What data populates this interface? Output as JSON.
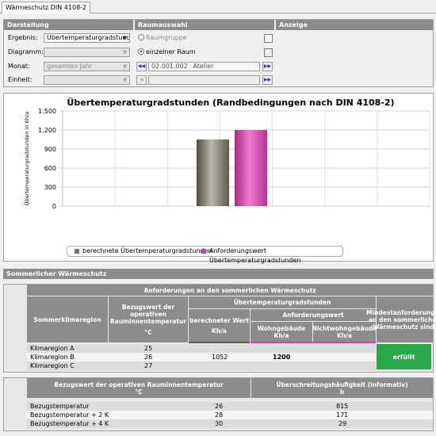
{
  "tab": {
    "title": "Wärmeschutz DIN 4108-2"
  },
  "panels": {
    "darstellung": "Darstellung",
    "raumauswahl": "Raumauswahl",
    "anzeige": "Anzeige"
  },
  "form": {
    "ergebnis_label": "Ergebnis:",
    "ergebnis_value": "Übertemperaturgradstunden",
    "diagramm_label": "Diagramm:",
    "diagramm_value": "",
    "monat_label": "Monat:",
    "monat_value": "gesamtes Jahr",
    "einheit_label": "Einheit:",
    "einheit_value": ""
  },
  "raum": {
    "raumgruppe_label": "Raumgruppe",
    "einzelner_raum_label": "einzelner Raum",
    "selected": "einzelner Raum",
    "raum_nummer": "02.001.002",
    "raum_name": "Atelier"
  },
  "chart_data": {
    "type": "bar",
    "title": "Übertemperaturgradstunden (Randbedingungen nach DIN 4108-2)",
    "ylabel": "Übertemperaturgradstunden in Kh/a",
    "ylim": [
      0,
      1500
    ],
    "yticks": [
      0,
      300,
      600,
      900,
      1200,
      1500
    ],
    "ytick_labels": [
      "0",
      "300",
      "600",
      "900",
      "1.200",
      "1.500"
    ],
    "grid": true,
    "legend_position": "bottom",
    "series": [
      {
        "name": "berechnete Übertemperaturgradstunden",
        "value": 1052,
        "color": "#7a766a"
      },
      {
        "name": "Anforderungswert Übertemperaturgradstunden",
        "value": 1200,
        "color": "#d33fa6"
      }
    ]
  },
  "section": {
    "title": "Sommerlicher Wärmeschutz"
  },
  "table1": {
    "title": "Anforderungen an den sommerlichen Wärmeschutz",
    "col_region": "Sommerklimaregion",
    "col_bezug": "Bezugswert der operativen Rauminnentemperatur",
    "col_bezug_unit": "°C",
    "col_ueber": "Übertemperaturgradstunden",
    "col_berechnet": "berechneter Wert",
    "col_berechnet_unit": "Kh/a",
    "col_anforderung": "Anforderungswert",
    "col_wohn": "Wohngebäude",
    "col_wohn_unit": "Kh/a",
    "col_nichtwohn": "Nichtwohngebäude",
    "col_nichtwohn_unit": "Kh/a",
    "col_mindest": "Mindestanforderungen an den sommerlichen Wärmeschutz sind:",
    "rows": [
      {
        "region": "Klimaregion A",
        "bezug": "25",
        "berechnet": "",
        "wohn": ""
      },
      {
        "region": "Klimaregion B",
        "bezug": "26",
        "berechnet": "1052",
        "wohn": "1200"
      },
      {
        "region": "Klimaregion C",
        "bezug": "27",
        "berechnet": "",
        "wohn": ""
      }
    ],
    "status": "erfüllt"
  },
  "table2": {
    "col_bezug": "Bezugswert der operativen Rauminnentemperatur",
    "col_bezug_unit": "°C",
    "col_haeufig": "Überschreitungshäufigkeit (informativ)",
    "col_haeufig_unit": "h",
    "rows": [
      {
        "label": "Bezugstemperatur",
        "temp": "26",
        "h": "815"
      },
      {
        "label": "Bezugstemperatur + 2 K",
        "temp": "28",
        "h": "171"
      },
      {
        "label": "Bezugstemperatur + 4 K",
        "temp": "30",
        "h": "29"
      }
    ]
  },
  "colors": {
    "header_gray": "#8c8c8c",
    "berechnet_bar": "#7a766a",
    "anforderung_bar": "#d33fa6",
    "status_green": "#2ca84c"
  }
}
